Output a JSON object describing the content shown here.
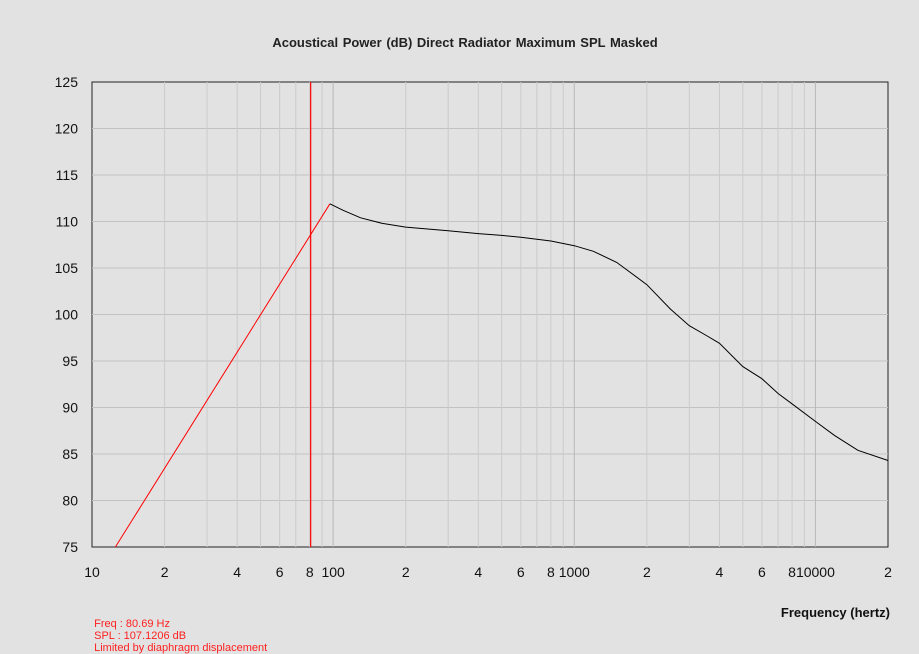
{
  "chart_data": {
    "type": "line",
    "title": "Acoustical Power (dB)   Direct Radiator   Maximum SPL   Masked",
    "xlabel": "Frequency (hertz)",
    "ylabel": "",
    "xscale": "log",
    "xlim": [
      10,
      20000
    ],
    "ylim": [
      75,
      125
    ],
    "grid": true,
    "yticks": [
      75,
      80,
      85,
      90,
      95,
      100,
      105,
      110,
      115,
      120,
      125
    ],
    "xtick_labels": [
      {
        "x": 10,
        "label": "10"
      },
      {
        "x": 20,
        "label": "2"
      },
      {
        "x": 40,
        "label": "4"
      },
      {
        "x": 60,
        "label": "6"
      },
      {
        "x": 80,
        "label": "8"
      },
      {
        "x": 100,
        "label": "100"
      },
      {
        "x": 200,
        "label": "2"
      },
      {
        "x": 400,
        "label": "4"
      },
      {
        "x": 600,
        "label": "6"
      },
      {
        "x": 800,
        "label": "8"
      },
      {
        "x": 1000,
        "label": "1000"
      },
      {
        "x": 2000,
        "label": "2"
      },
      {
        "x": 4000,
        "label": "4"
      },
      {
        "x": 6000,
        "label": "6"
      },
      {
        "x": 8000,
        "label": "8"
      },
      {
        "x": 10000,
        "label": "10000"
      },
      {
        "x": 20000,
        "label": "2"
      }
    ],
    "series": [
      {
        "color": "#ff0000",
        "x": [
          12.5,
          97
        ],
        "y": [
          75,
          111.9
        ]
      },
      {
        "color": "#000000",
        "x": [
          97,
          110,
          130,
          160,
          200,
          300,
          400,
          500,
          600,
          700,
          800,
          1000,
          1200,
          1500,
          2000,
          2500,
          3000,
          3500,
          4000,
          5000,
          6000,
          7000,
          8000,
          10000,
          12000,
          15000,
          20000
        ],
        "y": [
          111.9,
          111.2,
          110.4,
          109.8,
          109.4,
          109.0,
          108.7,
          108.5,
          108.3,
          108.1,
          107.9,
          107.4,
          106.8,
          105.6,
          103.2,
          100.6,
          98.8,
          97.8,
          96.9,
          94.4,
          93.1,
          91.5,
          90.4,
          88.5,
          87.0,
          85.4,
          84.3
        ]
      }
    ],
    "cursor": {
      "x": 80.69,
      "color": "#ff0000"
    }
  },
  "status": {
    "freq": "Freq : 80.69 Hz",
    "spl": "SPL : 107.1206 dB",
    "note": "Limited by diaphragm displacement"
  }
}
